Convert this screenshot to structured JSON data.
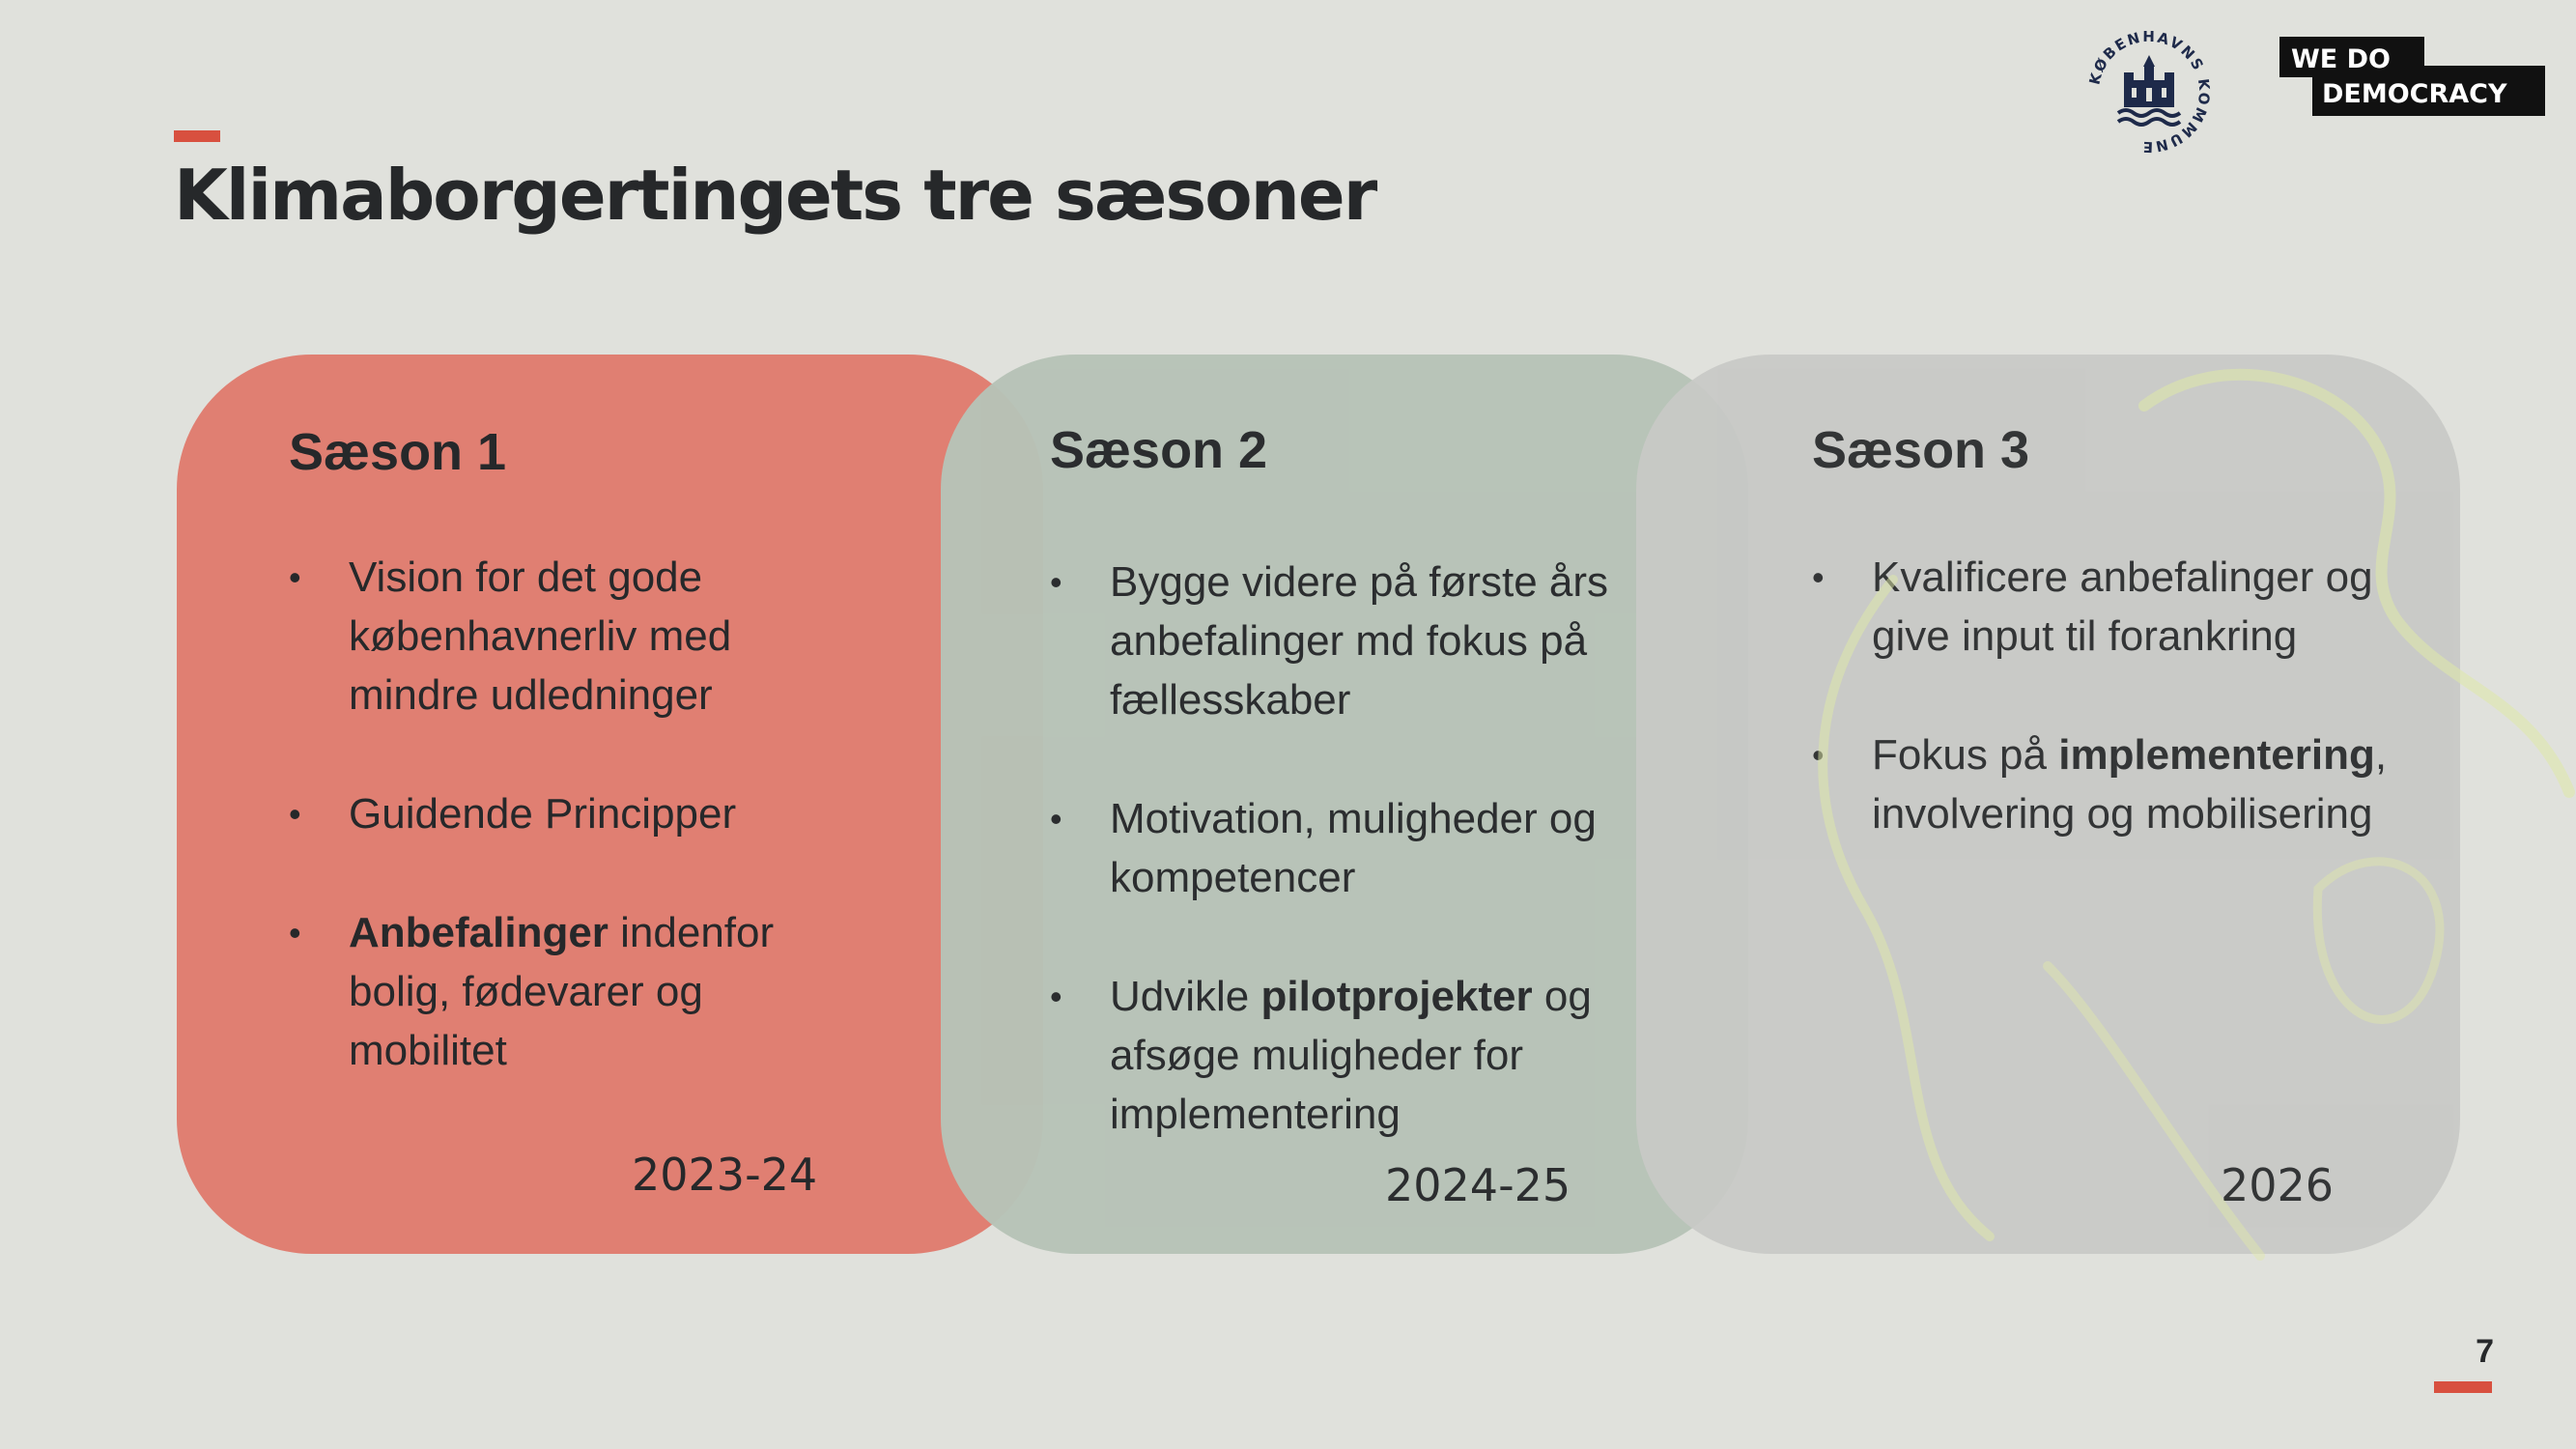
{
  "slide": {
    "title": "Klimaborgertingets tre sæsoner",
    "page_number": "7"
  },
  "logos": {
    "city_seal": "KØBENHAVNS KOMMUNE",
    "partner_line1": "WE DO",
    "partner_line2": "DEMOCRACY"
  },
  "colors": {
    "accent": "#d8503f",
    "season1": "#e07f72",
    "season2": "#b7c3b7",
    "season3": "#c8c9c6",
    "background": "#e0e1dc"
  },
  "seasons": [
    {
      "title": "Sæson 1",
      "years": "2023-24",
      "bullets": [
        {
          "bold": "",
          "text": "Vision for det gode københavnerliv med mindre udledninger",
          "after": ""
        },
        {
          "bold": "",
          "text": "Guidende Principper",
          "after": ""
        },
        {
          "bold": "Anbefalinger",
          "text": " indenfor bolig, fødevarer og mobilitet",
          "after": ""
        }
      ]
    },
    {
      "title": "Sæson 2",
      "years": "2024-25",
      "bullets": [
        {
          "bold": "",
          "text": "Bygge videre på første års anbefalinger md fokus på fællesskaber",
          "after": ""
        },
        {
          "bold": "",
          "text": "Motivation, muligheder og kompetencer",
          "after": ""
        },
        {
          "before": "Udvikle ",
          "bold": "pilotprojekter",
          "text": " og afsøge muligheder for implementering"
        }
      ]
    },
    {
      "title": "Sæson 3",
      "years": "2026",
      "bullets": [
        {
          "bold": "",
          "text": "Kvalificere anbefalinger og give input til forankring",
          "after": ""
        },
        {
          "before": "Fokus på ",
          "bold": "implementering",
          "text": ", involvering og mobilisering"
        }
      ]
    }
  ]
}
